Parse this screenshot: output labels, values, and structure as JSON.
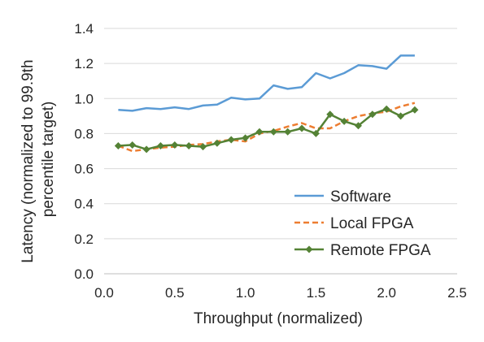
{
  "chart_data": {
    "type": "line",
    "xlabel": "Throughput (normalized)",
    "ylabel_lines": [
      "Latency (normalized to 99.9th",
      "percentile target)"
    ],
    "xlim": [
      0,
      2.5
    ],
    "ylim": [
      0,
      1.4
    ],
    "x_ticks": [
      "0.0",
      "0.5",
      "1.0",
      "1.5",
      "2.0",
      "2.5"
    ],
    "y_ticks": [
      "0.0",
      "0.2",
      "0.4",
      "0.6",
      "0.8",
      "1.0",
      "1.2",
      "1.4"
    ],
    "grid": "horizontal",
    "legend": "bottom-right",
    "series": [
      {
        "name": "Software",
        "color": "#5b9bd5",
        "style": "solid",
        "marker": "none",
        "x": [
          0.1,
          0.2,
          0.3,
          0.4,
          0.5,
          0.6,
          0.7,
          0.8,
          0.9,
          1.0,
          1.1,
          1.2,
          1.3,
          1.4,
          1.5,
          1.6,
          1.7,
          1.8,
          1.9,
          2.0,
          2.1,
          2.2
        ],
        "y": [
          0.935,
          0.93,
          0.945,
          0.94,
          0.95,
          0.94,
          0.96,
          0.965,
          1.005,
          0.995,
          1.0,
          1.075,
          1.055,
          1.065,
          1.145,
          1.115,
          1.145,
          1.19,
          1.185,
          1.17,
          1.245,
          1.245
        ]
      },
      {
        "name": "Local FPGA",
        "color": "#ed7d31",
        "style": "dashed",
        "marker": "none",
        "x": [
          0.1,
          0.2,
          0.3,
          0.4,
          0.5,
          0.6,
          0.7,
          0.8,
          0.9,
          1.0,
          1.1,
          1.2,
          1.3,
          1.4,
          1.5,
          1.6,
          1.7,
          1.8,
          1.9,
          2.0,
          2.1,
          2.2
        ],
        "y": [
          0.73,
          0.7,
          0.71,
          0.72,
          0.725,
          0.735,
          0.74,
          0.755,
          0.765,
          0.755,
          0.8,
          0.815,
          0.84,
          0.86,
          0.83,
          0.83,
          0.87,
          0.9,
          0.915,
          0.925,
          0.955,
          0.975
        ]
      },
      {
        "name": "Remote FPGA",
        "color": "#548235",
        "style": "solid",
        "marker": "diamond",
        "x": [
          0.1,
          0.2,
          0.3,
          0.4,
          0.5,
          0.6,
          0.7,
          0.8,
          0.9,
          1.0,
          1.1,
          1.2,
          1.3,
          1.4,
          1.5,
          1.6,
          1.7,
          1.8,
          1.9,
          2.0,
          2.1,
          2.2
        ],
        "y": [
          0.73,
          0.735,
          0.71,
          0.73,
          0.735,
          0.73,
          0.725,
          0.745,
          0.765,
          0.775,
          0.81,
          0.81,
          0.81,
          0.83,
          0.8,
          0.91,
          0.87,
          0.845,
          0.91,
          0.94,
          0.9,
          0.935
        ]
      }
    ]
  }
}
